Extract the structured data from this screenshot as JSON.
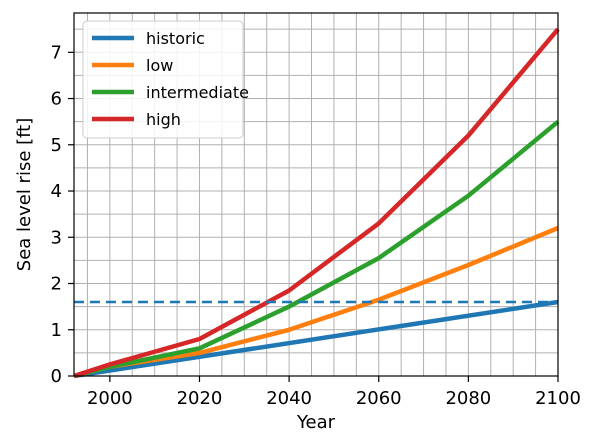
{
  "chart_data": {
    "type": "line",
    "title": "",
    "xlabel": "Year",
    "ylabel": "Sea level rise [ft]",
    "xlim": [
      1992,
      2100
    ],
    "ylim": [
      0,
      7.85
    ],
    "xticks": [
      2000,
      2020,
      2040,
      2060,
      2080,
      2100
    ],
    "yticks": [
      0,
      1,
      2,
      3,
      4,
      5,
      6,
      7
    ],
    "grid": true,
    "grid_x_step": 5,
    "grid_y_step": 0.5,
    "legend_position": "top-left",
    "series": [
      {
        "name": "historic",
        "color": "#1f77b4",
        "x": [
          1992,
          2100
        ],
        "y": [
          0,
          1.6
        ]
      },
      {
        "name": "low",
        "color": "#ff7f0e",
        "x": [
          1992,
          2000,
          2020,
          2040,
          2060,
          2080,
          2100
        ],
        "y": [
          0,
          0.2,
          0.5,
          1.0,
          1.65,
          2.4,
          3.2
        ]
      },
      {
        "name": "intermediate",
        "color": "#2ca02c",
        "x": [
          1992,
          2000,
          2020,
          2040,
          2060,
          2080,
          2100
        ],
        "y": [
          0,
          0.2,
          0.6,
          1.5,
          2.55,
          3.9,
          5.5
        ]
      },
      {
        "name": "high",
        "color": "#d62728",
        "x": [
          1992,
          2000,
          2020,
          2040,
          2060,
          2080,
          2100
        ],
        "y": [
          0,
          0.25,
          0.8,
          1.85,
          3.3,
          5.2,
          7.5
        ]
      }
    ],
    "reference_line": {
      "y": 1.6,
      "color": "#1f77b4",
      "style": "dashed"
    }
  }
}
